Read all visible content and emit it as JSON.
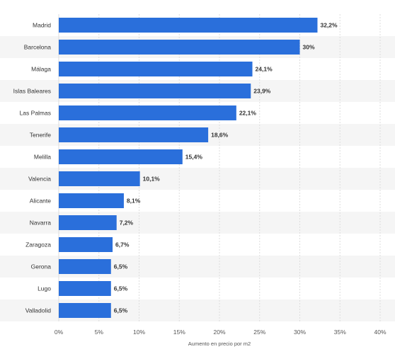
{
  "chart_data": {
    "type": "bar",
    "orientation": "horizontal",
    "categories": [
      "Madrid",
      "Barcelona",
      "Málaga",
      "Islas Baleares",
      "Las Palmas",
      "Tenerife",
      "Melilla",
      "Valencia",
      "Alicante",
      "Navarra",
      "Zaragoza",
      "Gerona",
      "Lugo",
      "Valladolid"
    ],
    "values": [
      32.2,
      30,
      24.1,
      23.9,
      22.1,
      18.6,
      15.4,
      10.1,
      8.1,
      7.2,
      6.7,
      6.5,
      6.5,
      6.5
    ],
    "value_labels": [
      "32,2%",
      "30%",
      "24,1%",
      "23,9%",
      "22,1%",
      "18,6%",
      "15,4%",
      "10,1%",
      "8,1%",
      "7,2%",
      "6,7%",
      "6,5%",
      "6,5%",
      "6,5%"
    ],
    "xlabel": "Aumento en precio por m2",
    "ylabel": "",
    "xlim": [
      0,
      40
    ],
    "xticks": [
      0,
      5,
      10,
      15,
      20,
      25,
      30,
      35,
      40
    ],
    "xtick_labels": [
      "0%",
      "5%",
      "10%",
      "15%",
      "20%",
      "25%",
      "30%",
      "35%",
      "40%"
    ],
    "grid": true,
    "bar_color": "#2a6fdb",
    "stripe_color": "#f5f5f5"
  }
}
